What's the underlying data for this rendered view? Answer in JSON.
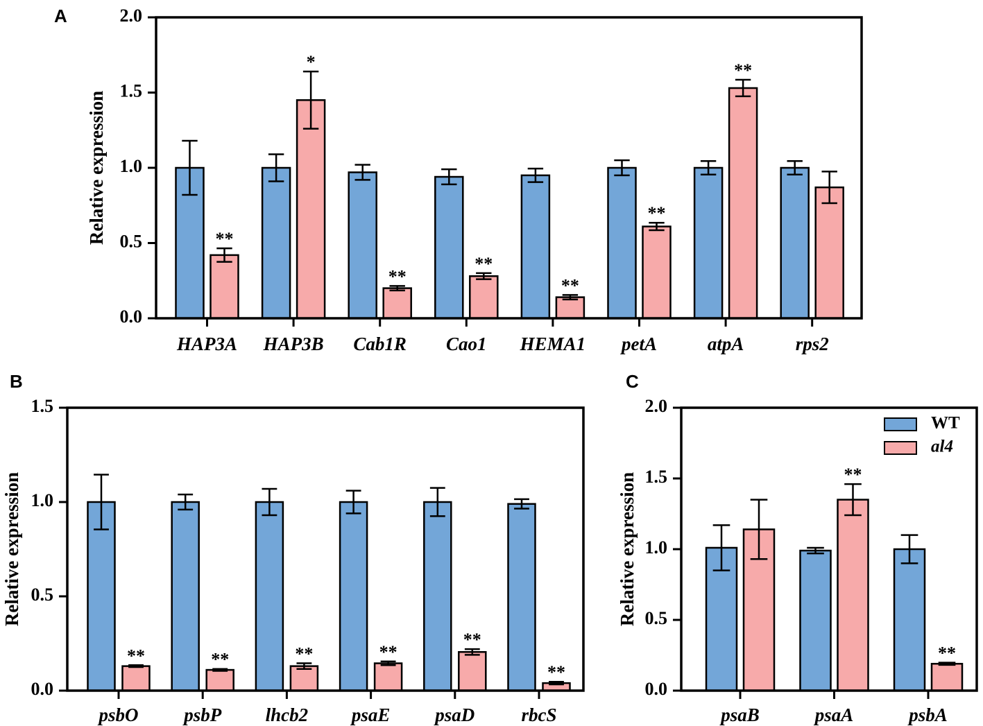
{
  "colors": {
    "wt": "#73a6d8",
    "al4": "#f7aaaa",
    "stroke": "#000000"
  },
  "legend": {
    "items": [
      {
        "label": "WT",
        "series": "wt"
      },
      {
        "label": "al4",
        "series": "al4"
      }
    ]
  },
  "chart_data": [
    {
      "panel": "A",
      "type": "bar",
      "ylabel": "Relative expression",
      "ylim": [
        0,
        2.0
      ],
      "yticks": [
        "0.0",
        "0.5",
        "1.0",
        "1.5",
        "2.0"
      ],
      "categories": [
        "HAP3A",
        "HAP3B",
        "Cab1R",
        "Cao1",
        "HEMA1",
        "petA",
        "atpA",
        "rps2"
      ],
      "series": [
        {
          "name": "WT",
          "values": [
            1.0,
            1.0,
            0.97,
            0.94,
            0.95,
            1.0,
            1.0,
            1.0
          ],
          "errors": [
            0.18,
            0.09,
            0.05,
            0.05,
            0.045,
            0.05,
            0.045,
            0.045
          ],
          "sig": [
            "",
            "",
            "",
            "",
            "",
            "",
            "",
            ""
          ]
        },
        {
          "name": "al4",
          "values": [
            0.42,
            1.45,
            0.2,
            0.28,
            0.14,
            0.61,
            1.53,
            0.87
          ],
          "errors": [
            0.045,
            0.19,
            0.015,
            0.02,
            0.015,
            0.025,
            0.055,
            0.105
          ],
          "sig": [
            "**",
            "*",
            "**",
            "**",
            "**",
            "**",
            "**",
            ""
          ]
        }
      ]
    },
    {
      "panel": "B",
      "type": "bar",
      "ylabel": "Relative expression",
      "ylim": [
        0,
        1.5
      ],
      "yticks": [
        "0.0",
        "0.5",
        "1.0",
        "1.5"
      ],
      "categories": [
        "psbO",
        "psbP",
        "lhcb2",
        "psaE",
        "psaD",
        "rbcS"
      ],
      "series": [
        {
          "name": "WT",
          "values": [
            1.0,
            1.0,
            1.0,
            1.0,
            1.0,
            0.99
          ],
          "errors": [
            0.145,
            0.04,
            0.07,
            0.06,
            0.075,
            0.025
          ],
          "sig": [
            "",
            "",
            "",
            "",
            "",
            ""
          ]
        },
        {
          "name": "al4",
          "values": [
            0.13,
            0.11,
            0.13,
            0.145,
            0.205,
            0.04
          ],
          "errors": [
            0.005,
            0.005,
            0.015,
            0.01,
            0.015,
            0.007
          ],
          "sig": [
            "**",
            "**",
            "**",
            "**",
            "**",
            "**"
          ]
        }
      ]
    },
    {
      "panel": "C",
      "type": "bar",
      "ylabel": "Relative expression",
      "ylim": [
        0,
        2.0
      ],
      "yticks": [
        "0.0",
        "0.5",
        "1.0",
        "1.5",
        "2.0"
      ],
      "categories": [
        "psaB",
        "psaA",
        "psbA"
      ],
      "series": [
        {
          "name": "WT",
          "values": [
            1.01,
            0.99,
            1.0
          ],
          "errors": [
            0.16,
            0.02,
            0.1
          ],
          "sig": [
            "",
            "",
            ""
          ]
        },
        {
          "name": "al4",
          "values": [
            1.14,
            1.35,
            0.19
          ],
          "errors": [
            0.21,
            0.11,
            0.008
          ],
          "sig": [
            "",
            "**",
            "**"
          ]
        }
      ]
    }
  ]
}
